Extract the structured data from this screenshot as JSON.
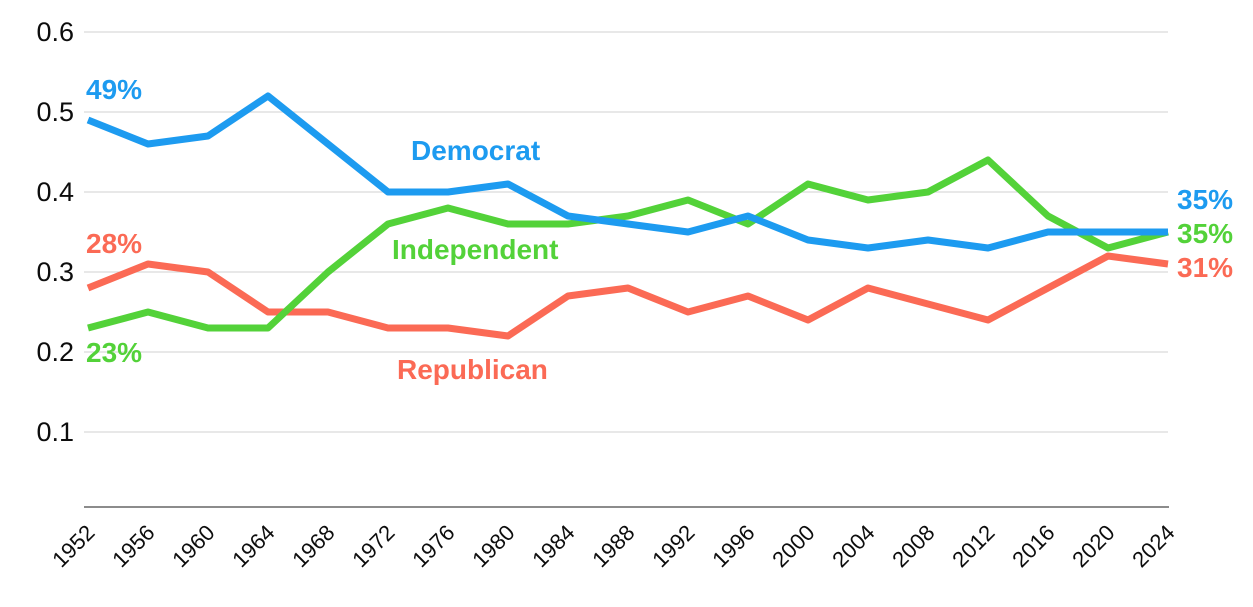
{
  "chart_data": {
    "type": "line",
    "title": "",
    "xlabel": "",
    "ylabel": "",
    "x": [
      1952,
      1956,
      1960,
      1964,
      1968,
      1972,
      1976,
      1980,
      1984,
      1988,
      1992,
      1996,
      2000,
      2004,
      2008,
      2012,
      2016,
      2020,
      2024
    ],
    "x_tick_labels": [
      "1952",
      "1956",
      "1960",
      "1964",
      "1968",
      "1972",
      "1976",
      "1980",
      "1984",
      "1988",
      "1992",
      "1996",
      "2000",
      "2004",
      "2008",
      "2012",
      "2016",
      "2020",
      "2024"
    ],
    "y_ticks": [
      0.1,
      0.2,
      0.3,
      0.4,
      0.5,
      0.6
    ],
    "y_tick_labels": [
      "0.1",
      "0.2",
      "0.3",
      "0.4",
      "0.5",
      "0.6"
    ],
    "ylim": [
      0,
      0.62
    ],
    "grid": true,
    "legend_position": "inline-labels",
    "series": [
      {
        "name": "Democrat",
        "color": "#1D9BF0",
        "values": [
          0.49,
          0.46,
          0.47,
          0.52,
          0.46,
          0.4,
          0.4,
          0.41,
          0.37,
          0.36,
          0.35,
          0.37,
          0.34,
          0.33,
          0.34,
          0.33,
          0.35,
          0.35,
          0.35
        ]
      },
      {
        "name": "Independent",
        "color": "#53D239",
        "values": [
          0.23,
          0.25,
          0.23,
          0.23,
          0.3,
          0.36,
          0.38,
          0.36,
          0.36,
          0.37,
          0.39,
          0.36,
          0.41,
          0.39,
          0.4,
          0.44,
          0.37,
          0.33,
          0.35
        ]
      },
      {
        "name": "Republican",
        "color": "#FB6A55",
        "values": [
          0.28,
          0.31,
          0.3,
          0.25,
          0.25,
          0.23,
          0.23,
          0.22,
          0.27,
          0.28,
          0.25,
          0.27,
          0.24,
          0.28,
          0.26,
          0.24,
          0.28,
          0.32,
          0.31
        ]
      }
    ],
    "annotations": {
      "start_democrat": {
        "text": "49%",
        "color": "#1D9BF0"
      },
      "start_republican": {
        "text": "28%",
        "color": "#FB6A55"
      },
      "start_independent": {
        "text": "23%",
        "color": "#53D239"
      },
      "label_democrat": {
        "text": "Democrat",
        "color": "#1D9BF0"
      },
      "label_independent": {
        "text": "Independent",
        "color": "#53D239"
      },
      "label_republican": {
        "text": "Republican",
        "color": "#FB6A55"
      },
      "end_democrat": {
        "text": "35%",
        "color": "#1D9BF0"
      },
      "end_independent": {
        "text": "35%",
        "color": "#53D239"
      },
      "end_republican": {
        "text": "31%",
        "color": "#FB6A55"
      }
    },
    "colors": {
      "background": "#FFFFFF",
      "grid": "#D9D9D9",
      "axis": "#8C8C8C",
      "tick_text": "#0D0D0D"
    }
  }
}
